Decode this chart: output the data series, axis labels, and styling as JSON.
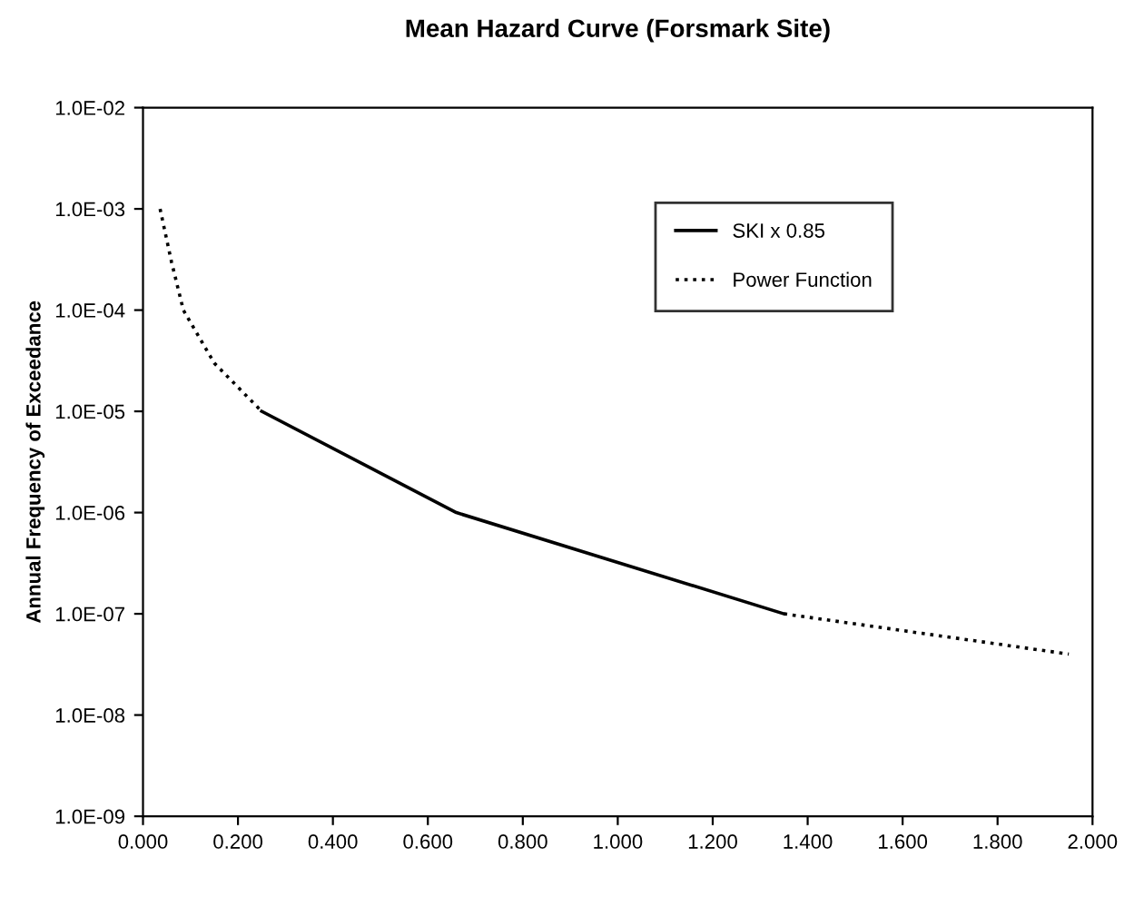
{
  "chart_data": {
    "type": "line",
    "title": "Mean Hazard Curve (Forsmark Site)",
    "ylabel": "Annual Frequency of Exceedance",
    "log": "y",
    "grid": false,
    "legend": "top right",
    "series": [
      {
        "name": "SKI x 0.85",
        "color": "#000000",
        "line_style": "solid",
        "x": [
          0.25,
          0.66,
          1.35
        ],
        "values": [
          1e-05,
          1e-06,
          1e-07
        ]
      },
      {
        "name": "Power Function",
        "color": "#000000",
        "line_style": "dotted",
        "x": [
          0.036,
          0.06,
          0.085,
          0.15,
          0.25,
          0.66,
          1.35,
          1.95
        ],
        "values": [
          0.001,
          0.0003,
          0.0001,
          3e-05,
          1e-05,
          null,
          1e-07,
          4e-08
        ]
      }
    ],
    "xlim": [
      0,
      2.0
    ],
    "xticks": [
      {
        "value": 0,
        "label": "0.000"
      },
      {
        "value": 0.2,
        "label": "0.200"
      },
      {
        "value": 0.4,
        "label": "0.400"
      },
      {
        "value": 0.6,
        "label": "0.600"
      },
      {
        "value": 0.8,
        "label": "0.800"
      },
      {
        "value": 1.0,
        "label": "1.000"
      },
      {
        "value": 1.2,
        "label": "1.200"
      },
      {
        "value": 1.4,
        "label": "1.400"
      },
      {
        "value": 1.6,
        "label": "1.600"
      },
      {
        "value": 1.8,
        "label": "1.800"
      },
      {
        "value": 2.0,
        "label": "2.000"
      }
    ],
    "ylim": [
      1e-09,
      0.01
    ],
    "yticks": [
      {
        "value": 1e-09,
        "label": "1.0E-09"
      },
      {
        "value": 1e-08,
        "label": "1.0E-08"
      },
      {
        "value": 1e-07,
        "label": "1.0E-07"
      },
      {
        "value": 1e-06,
        "label": "1.0E-06"
      },
      {
        "value": 1e-05,
        "label": "1.0E-05"
      },
      {
        "value": 0.0001,
        "label": "1.0E-04"
      },
      {
        "value": 0.001,
        "label": "1.0E-03"
      },
      {
        "value": 0.01,
        "label": "1.0E-02"
      }
    ]
  }
}
